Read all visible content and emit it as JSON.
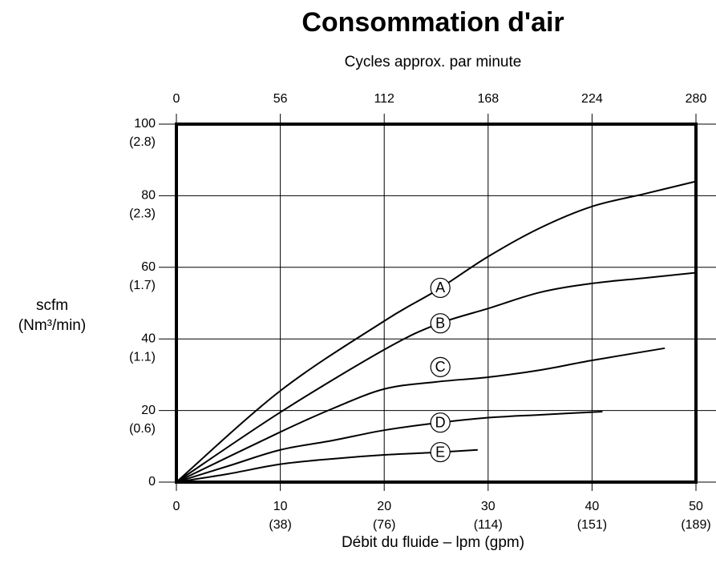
{
  "chart_data": {
    "type": "line",
    "title": "Consommation d'air",
    "subtitle": "Cycles approx.  par minute",
    "xlabel": "Débit du fluide – lpm (gpm)",
    "ylabel": [
      "scfm",
      "(Nm³/min)"
    ],
    "xlim": [
      0,
      50
    ],
    "xticks": [
      0,
      10,
      20,
      30,
      40,
      50
    ],
    "xtick_secondary_labels": [
      null,
      "(38)",
      "(76)",
      "(114)",
      "(151)",
      "(189)"
    ],
    "x2lim": [
      0,
      280
    ],
    "x2ticks": [
      0,
      56,
      112,
      168,
      224,
      280
    ],
    "ylim": [
      0,
      100
    ],
    "yticks": [
      0,
      20,
      40,
      60,
      80,
      100
    ],
    "ytick_secondary_labels": [
      null,
      "(0.6)",
      "(1.1)",
      "(1.7)",
      "(2.3)",
      "(2.8)"
    ],
    "grid": true,
    "series": [
      {
        "name": "A",
        "color": "#000000",
        "x": [
          0,
          10,
          20,
          25,
          30,
          35,
          40,
          45,
          50
        ],
        "values": [
          0,
          25.5,
          45,
          53.5,
          63,
          71,
          77,
          80.5,
          84
        ]
      },
      {
        "name": "B",
        "color": "#000000",
        "x": [
          0,
          10,
          20,
          25,
          30,
          35,
          40,
          45,
          50
        ],
        "values": [
          0,
          19.5,
          37,
          44,
          48.5,
          53,
          55.5,
          57,
          58.5
        ]
      },
      {
        "name": "C",
        "color": "#000000",
        "x": [
          0,
          10,
          15,
          20,
          25,
          30,
          35,
          40,
          47
        ],
        "values": [
          0,
          14,
          20.5,
          26,
          28,
          29.3,
          31.3,
          34,
          37.4
        ]
      },
      {
        "name": "D",
        "color": "#000000",
        "x": [
          0,
          5,
          10,
          15,
          20,
          25,
          30,
          35,
          41
        ],
        "values": [
          0,
          4.5,
          9,
          11.6,
          14.5,
          16.5,
          18,
          18.8,
          19.7
        ]
      },
      {
        "name": "E",
        "color": "#000000",
        "x": [
          0,
          5,
          10,
          15,
          20,
          25,
          29
        ],
        "values": [
          0,
          2.3,
          5,
          6.5,
          7.6,
          8.3,
          9
        ]
      }
    ]
  }
}
